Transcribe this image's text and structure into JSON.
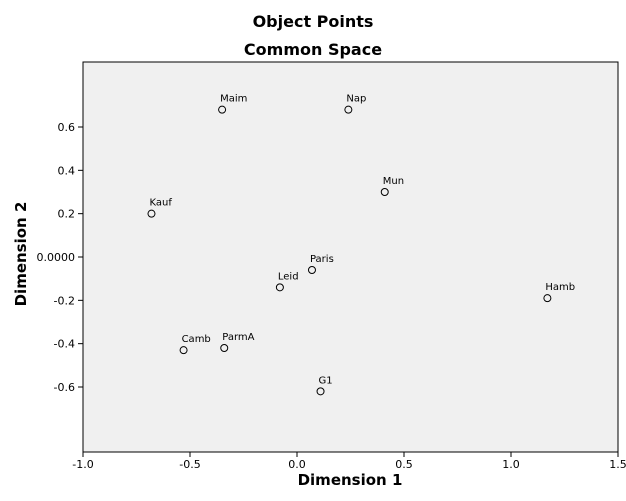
{
  "chart_data": {
    "type": "scatter",
    "title": "Object Points",
    "subtitle": "Common Space",
    "xlabel": "Dimension 1",
    "ylabel": "Dimension 2",
    "xlim": [
      -1.0,
      1.5
    ],
    "ylim": [
      -0.9,
      0.9
    ],
    "xticks": [
      "-1.0",
      "-0.5",
      "0.0",
      "0.5",
      "1.0",
      "1.5"
    ],
    "xtick_values": [
      -1.0,
      -0.5,
      0.0,
      0.5,
      1.0,
      1.5
    ],
    "yticks": [
      "-0.6",
      "-0.4",
      "-0.2",
      "0.0000",
      "0.2",
      "0.4",
      "0.6"
    ],
    "ytick_values": [
      -0.6,
      -0.4,
      -0.2,
      0.0,
      0.2,
      0.4,
      0.6
    ],
    "grid": false,
    "plot_background": "#f0f0f0",
    "points": [
      {
        "label": "Maim",
        "x": -0.35,
        "y": 0.68
      },
      {
        "label": "Nap",
        "x": 0.24,
        "y": 0.68
      },
      {
        "label": "Mun",
        "x": 0.41,
        "y": 0.3
      },
      {
        "label": "Kauf",
        "x": -0.68,
        "y": 0.2
      },
      {
        "label": "Paris",
        "x": 0.07,
        "y": -0.06
      },
      {
        "label": "Leid",
        "x": -0.08,
        "y": -0.14
      },
      {
        "label": "Hamb",
        "x": 1.17,
        "y": -0.19
      },
      {
        "label": "Camb",
        "x": -0.53,
        "y": -0.43
      },
      {
        "label": "ParmA",
        "x": -0.34,
        "y": -0.42
      },
      {
        "label": "G1",
        "x": 0.11,
        "y": -0.62
      }
    ]
  }
}
